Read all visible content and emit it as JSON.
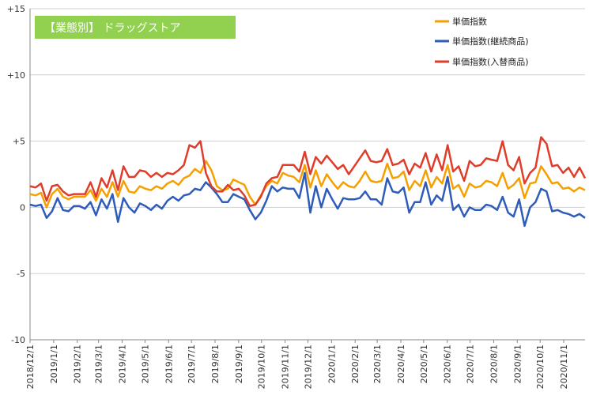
{
  "chart_data": {
    "type": "line",
    "title": "【業態別】 ドラッグストア",
    "xlabel": "",
    "ylabel": "",
    "ylim": [
      -10,
      15
    ],
    "y_ticks": [
      15,
      10,
      5,
      0,
      -5,
      -10
    ],
    "y_tick_labels": [
      "+15",
      "+10",
      "+5",
      "0",
      "-5",
      "-10"
    ],
    "grid": "horizontal",
    "legend_position": "top-right",
    "title_box_color": "#92d050",
    "x_start": "2018-12-01",
    "x_end": "2020-11-29",
    "x_tick_labels": [
      "2018/12/1",
      "2019/1/1",
      "2019/2/1",
      "2019/3/1",
      "2019/4/1",
      "2019/5/1",
      "2019/6/1",
      "2019/7/1",
      "2019/8/1",
      "2019/9/1",
      "2019/10/1",
      "2019/11/1",
      "2019/12/1",
      "2020/1/1",
      "2020/2/1",
      "2020/3/1",
      "2020/4/1",
      "2020/5/1",
      "2020/6/1",
      "2020/7/1",
      "2020/8/1",
      "2020/9/1",
      "2020/10/1",
      "2020/11/1"
    ],
    "series": [
      {
        "name": "単価指数",
        "color": "#f5a000",
        "values": [
          1.0,
          0.9,
          1.1,
          0.0,
          1.0,
          1.4,
          0.8,
          0.6,
          0.8,
          0.8,
          0.8,
          1.3,
          0.5,
          1.4,
          0.8,
          1.9,
          0.8,
          2.0,
          1.2,
          1.1,
          1.6,
          1.4,
          1.3,
          1.6,
          1.4,
          1.8,
          2.0,
          1.7,
          2.2,
          2.4,
          2.9,
          2.6,
          3.5,
          2.8,
          1.6,
          1.3,
          1.4,
          2.1,
          1.9,
          1.7,
          0.8,
          0.2,
          0.9,
          1.6,
          2.0,
          1.8,
          2.6,
          2.4,
          2.3,
          1.9,
          3.2,
          1.5,
          2.8,
          1.6,
          2.5,
          1.9,
          1.4,
          1.9,
          1.6,
          1.5,
          2.0,
          2.7,
          2.0,
          1.9,
          2.0,
          3.3,
          2.2,
          2.3,
          2.7,
          1.3,
          2.0,
          1.6,
          2.8,
          1.5,
          2.3,
          1.8,
          3.2,
          1.4,
          1.7,
          0.8,
          1.8,
          1.5,
          1.6,
          2.0,
          1.9,
          1.6,
          2.6,
          1.4,
          1.7,
          2.2,
          0.7,
          1.8,
          1.9,
          3.1,
          2.5,
          1.8,
          1.9,
          1.4,
          1.5,
          1.2,
          1.5,
          1.3
        ]
      },
      {
        "name": "単価指数(継続商品)",
        "color": "#2e5cb8",
        "values": [
          0.2,
          0.1,
          0.2,
          -0.8,
          -0.3,
          0.7,
          -0.2,
          -0.3,
          0.1,
          0.1,
          -0.1,
          0.4,
          -0.6,
          0.6,
          -0.1,
          1.0,
          -1.1,
          0.7,
          0.0,
          -0.4,
          0.3,
          0.1,
          -0.2,
          0.2,
          -0.1,
          0.5,
          0.8,
          0.5,
          0.9,
          1.0,
          1.4,
          1.3,
          1.9,
          1.5,
          1.0,
          0.4,
          0.4,
          1.0,
          0.8,
          0.6,
          -0.2,
          -0.9,
          -0.4,
          0.5,
          1.6,
          1.2,
          1.5,
          1.4,
          1.4,
          0.7,
          2.6,
          -0.4,
          1.6,
          0.0,
          1.4,
          0.6,
          -0.1,
          0.7,
          0.6,
          0.6,
          0.7,
          1.2,
          0.6,
          0.6,
          0.2,
          2.2,
          1.2,
          1.1,
          1.5,
          -0.4,
          0.4,
          0.4,
          1.9,
          0.2,
          0.9,
          0.5,
          2.3,
          -0.2,
          0.2,
          -0.7,
          0.0,
          -0.2,
          -0.2,
          0.2,
          0.1,
          -0.2,
          0.8,
          -0.4,
          -0.7,
          0.6,
          -1.4,
          0.0,
          0.4,
          1.4,
          1.2,
          -0.3,
          -0.2,
          -0.4,
          -0.5,
          -0.7,
          -0.5,
          -0.8
        ]
      },
      {
        "name": "単価指数(入替商品)",
        "color": "#e03c2a",
        "values": [
          1.6,
          1.5,
          1.8,
          0.5,
          1.6,
          1.7,
          1.2,
          0.9,
          1.0,
          1.0,
          1.0,
          1.9,
          0.8,
          2.2,
          1.5,
          2.8,
          1.3,
          3.1,
          2.3,
          2.3,
          2.8,
          2.7,
          2.3,
          2.6,
          2.3,
          2.6,
          2.5,
          2.8,
          3.2,
          4.7,
          4.5,
          5.0,
          2.6,
          1.6,
          1.2,
          1.2,
          1.7,
          1.3,
          1.4,
          0.9,
          0.1,
          0.2,
          0.8,
          1.8,
          2.2,
          2.3,
          3.2,
          3.2,
          3.2,
          2.7,
          4.2,
          2.5,
          3.8,
          3.3,
          3.9,
          3.4,
          2.9,
          3.2,
          2.5,
          3.1,
          3.7,
          4.3,
          3.5,
          3.4,
          3.5,
          4.4,
          3.2,
          3.3,
          3.6,
          2.5,
          3.3,
          3.0,
          4.1,
          2.7,
          4.0,
          2.8,
          4.7,
          2.7,
          3.1,
          2.0,
          3.5,
          3.1,
          3.2,
          3.7,
          3.6,
          3.5,
          5.0,
          3.2,
          2.8,
          3.8,
          1.8,
          2.6,
          3.0,
          5.3,
          4.8,
          3.1,
          3.2,
          2.6,
          3.0,
          2.3,
          3.0,
          2.2
        ]
      }
    ]
  }
}
